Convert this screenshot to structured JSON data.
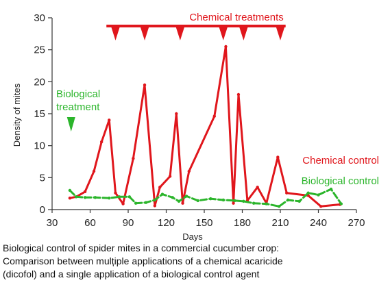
{
  "chart_data": {
    "type": "line",
    "title": "",
    "xlabel": "Days",
    "ylabel": "Density of mites",
    "xlim": [
      30,
      270
    ],
    "ylim": [
      0,
      30
    ],
    "xticks": [
      30,
      60,
      90,
      120,
      150,
      180,
      210,
      240,
      270
    ],
    "yticks": [
      0,
      5,
      10,
      15,
      20,
      25,
      30
    ],
    "grid": false,
    "series": [
      {
        "name": "Chemical control",
        "color": "#e0161c",
        "x": [
          44,
          49,
          56,
          63,
          69,
          75,
          80,
          86,
          94,
          103,
          111,
          115,
          123,
          128,
          133,
          138,
          158,
          167,
          173,
          177,
          184,
          192,
          199,
          208,
          215,
          232,
          242,
          257
        ],
        "y": [
          1.8,
          2.0,
          2.8,
          6.0,
          10.6,
          14.0,
          2.6,
          0.9,
          8.0,
          19.5,
          0.6,
          3.5,
          5.2,
          15.0,
          1.0,
          6.0,
          14.6,
          25.5,
          1.0,
          18.0,
          1.4,
          3.5,
          1.0,
          8.2,
          2.6,
          2.2,
          0.5,
          0.8
        ]
      },
      {
        "name": "Biological control",
        "color": "#2bb52b",
        "x": [
          44,
          49,
          56,
          64,
          75,
          83,
          91,
          96,
          104,
          111,
          117,
          125,
          130,
          136,
          145,
          155,
          165,
          174,
          181,
          189,
          199,
          209,
          216,
          225,
          232,
          240,
          250,
          258
        ],
        "y": [
          3.0,
          2.0,
          1.9,
          1.9,
          1.8,
          2.0,
          2.0,
          1.0,
          1.1,
          1.5,
          2.4,
          1.9,
          1.3,
          2.1,
          1.4,
          1.7,
          1.5,
          1.4,
          1.3,
          1.0,
          0.9,
          0.5,
          1.5,
          1.3,
          2.6,
          2.3,
          3.2,
          0.9
        ]
      }
    ],
    "annotations": {
      "chemical_treatments": {
        "label": "Chemical treatments",
        "color": "#e0161c",
        "bar_x": [
          75,
          212
        ],
        "treatment_days": [
          80,
          103,
          131,
          165,
          181,
          210
        ]
      },
      "biological_treatment": {
        "label_lines": [
          "Biological",
          "treatment"
        ],
        "color": "#2bb52b",
        "treatment_day": 45
      }
    }
  },
  "caption": {
    "lines": [
      "Biological control of spider mites in a commercial cucumber crop:",
      "Comparison between mulțiple applications of a chemical acaricide",
      "(dicofol) and a single application of a biological control agent"
    ]
  }
}
